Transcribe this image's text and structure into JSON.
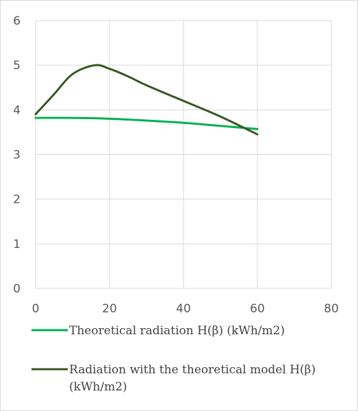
{
  "chart_data": {
    "type": "line",
    "title": "",
    "xlabel": "",
    "ylabel": "",
    "xlim": [
      0,
      80
    ],
    "ylim": [
      0,
      6
    ],
    "xticks": [
      0,
      20,
      40,
      60,
      80
    ],
    "yticks": [
      0,
      1,
      2,
      3,
      4,
      5,
      6
    ],
    "grid": true,
    "legend_position": "bottom",
    "series": [
      {
        "name": "Theoretical radiation H(β) (kWh/m2)",
        "color": "#00b050",
        "x": [
          0,
          10,
          20,
          30,
          40,
          50,
          60
        ],
        "y": [
          3.82,
          3.82,
          3.8,
          3.76,
          3.71,
          3.64,
          3.57
        ]
      },
      {
        "name": "Radiation with the theoretical model  H(β) (kWh/m2)",
        "color": "#375623",
        "x": [
          0,
          5,
          10,
          16,
          20,
          25,
          30,
          40,
          50,
          60
        ],
        "y": [
          3.9,
          4.35,
          4.8,
          5.0,
          4.92,
          4.75,
          4.55,
          4.2,
          3.85,
          3.45
        ]
      }
    ]
  }
}
